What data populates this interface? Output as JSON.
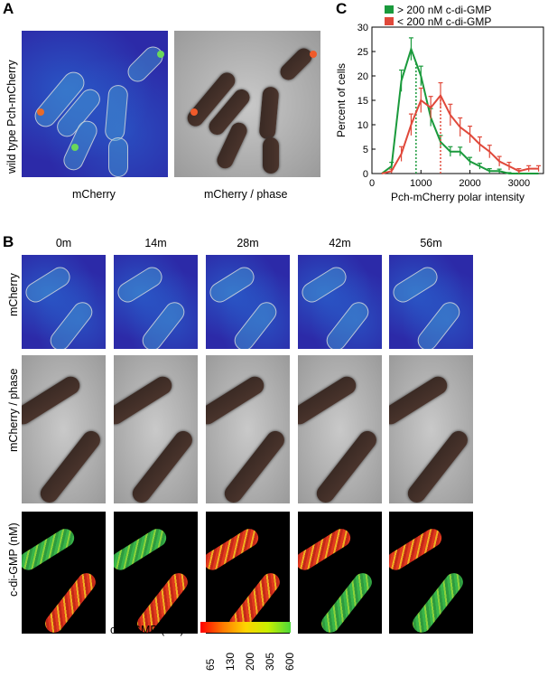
{
  "panel_a": {
    "letter": "A",
    "ylabel": "wild type Pch-mCherry",
    "captions": [
      "mCherry",
      "mCherry / phase"
    ]
  },
  "panel_b": {
    "letter": "B",
    "times": [
      "0m",
      "14m",
      "28m",
      "42m",
      "56m"
    ],
    "row_labels": [
      "mCherry",
      "mCherry / phase",
      "c-di-GMP (nM)"
    ],
    "colorbar": {
      "label": "c-di-GMP (nM)",
      "ticks": [
        "65",
        "130",
        "200",
        "305",
        "600"
      ],
      "colors": [
        "#ff0000",
        "#ff7a00",
        "#ffd400",
        "#c8f000",
        "#4cd83a"
      ]
    }
  },
  "panel_c": {
    "letter": "C"
  },
  "chart_data": {
    "type": "line",
    "xlabel": "Pch-mCherry polar intensity",
    "ylabel": "Percent of cells",
    "xlim": [
      0,
      3500
    ],
    "ylim": [
      0,
      30
    ],
    "xticks": [
      0,
      1000,
      2000,
      3000
    ],
    "yticks": [
      0,
      5,
      10,
      15,
      20,
      25,
      30
    ],
    "legend_position": "top",
    "series": [
      {
        "name": "> 200 nM c-di-GMP",
        "color": "#1a9a3c",
        "x": [
          200,
          400,
          600,
          800,
          1000,
          1200,
          1400,
          1600,
          1800,
          2000,
          2200,
          2400,
          2600,
          2800,
          3000,
          3200,
          3400
        ],
        "y": [
          0,
          1.5,
          19,
          25.5,
          20,
          11.5,
          6.5,
          4.5,
          4.5,
          2.5,
          1.5,
          0.5,
          0.5,
          0,
          0,
          0,
          0
        ],
        "err": [
          0,
          0.8,
          2.2,
          2.3,
          2.0,
          1.8,
          1.3,
          1.0,
          0.9,
          0.8,
          0.6,
          0.5,
          0.4,
          0.2,
          0.1,
          0,
          0
        ],
        "marker_x": 900
      },
      {
        "name": "< 200 nM c-di-GMP",
        "color": "#e0483a",
        "x": [
          200,
          400,
          600,
          800,
          1000,
          1200,
          1400,
          1600,
          1800,
          2000,
          2200,
          2400,
          2600,
          2800,
          3000,
          3200,
          3400
        ],
        "y": [
          0,
          0.5,
          4,
          10,
          15,
          13.5,
          16,
          12,
          9.5,
          8,
          6,
          4.5,
          2.5,
          1.5,
          0.5,
          1,
          1
        ],
        "err": [
          0,
          0.4,
          1.5,
          2.2,
          2.5,
          2.3,
          2.6,
          2.2,
          1.9,
          1.7,
          1.5,
          1.3,
          1.0,
          0.8,
          0.5,
          0.6,
          0.6
        ],
        "marker_x": 1400
      }
    ]
  }
}
